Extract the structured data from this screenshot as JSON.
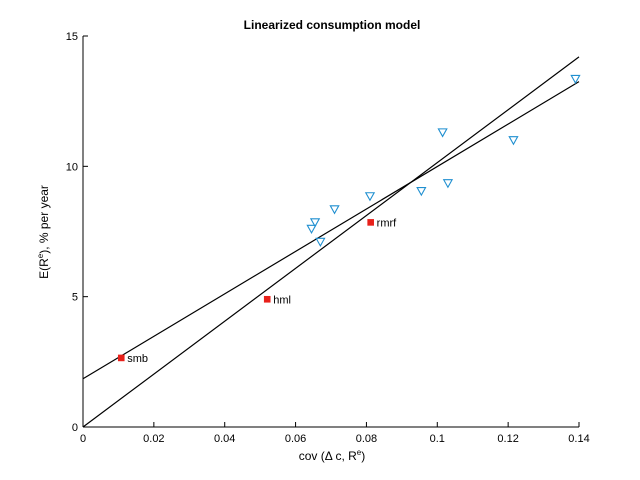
{
  "chart_data": {
    "type": "scatter",
    "title": "Linearized consumption model",
    "xlabel": "cov (Δ c, R",
    "xlabel_sup": "e",
    "xlabel_end": ")",
    "ylabel": "E(R",
    "ylabel_sup": "e",
    "ylabel_end": "), % per year",
    "xlim": [
      0,
      0.14
    ],
    "ylim": [
      0,
      15
    ],
    "xticks": [
      0,
      0.02,
      0.04,
      0.06,
      0.08,
      0.1,
      0.12,
      0.14
    ],
    "xtick_labels": [
      "0",
      "0.02",
      "0.04",
      "0.06",
      "0.08",
      "0.1",
      "0.12",
      "0.14"
    ],
    "yticks": [
      0,
      5,
      10,
      15
    ],
    "ytick_labels": [
      "0",
      "5",
      "10",
      "15"
    ],
    "grid": false,
    "series": [
      {
        "marker": "triangle-down",
        "color": "#1f8fd0",
        "points": [
          {
            "x": 0.0645,
            "y": 7.6
          },
          {
            "x": 0.0655,
            "y": 7.85
          },
          {
            "x": 0.067,
            "y": 7.1
          },
          {
            "x": 0.071,
            "y": 8.35
          },
          {
            "x": 0.081,
            "y": 8.85
          },
          {
            "x": 0.0955,
            "y": 9.05
          },
          {
            "x": 0.1015,
            "y": 11.3
          },
          {
            "x": 0.103,
            "y": 9.35
          },
          {
            "x": 0.1215,
            "y": 11.0
          },
          {
            "x": 0.139,
            "y": 13.35
          }
        ]
      },
      {
        "marker": "square",
        "color": "#e8201a",
        "points": [
          {
            "x": 0.0108,
            "y": 2.65,
            "label": "smb"
          },
          {
            "x": 0.052,
            "y": 4.9,
            "label": "hml"
          },
          {
            "x": 0.0812,
            "y": 7.85,
            "label": "rmrf"
          }
        ]
      }
    ],
    "lines": [
      {
        "x": [
          0,
          0.14
        ],
        "y": [
          1.85,
          13.25
        ]
      },
      {
        "x": [
          0,
          0.14
        ],
        "y": [
          0,
          14.2
        ]
      }
    ]
  }
}
